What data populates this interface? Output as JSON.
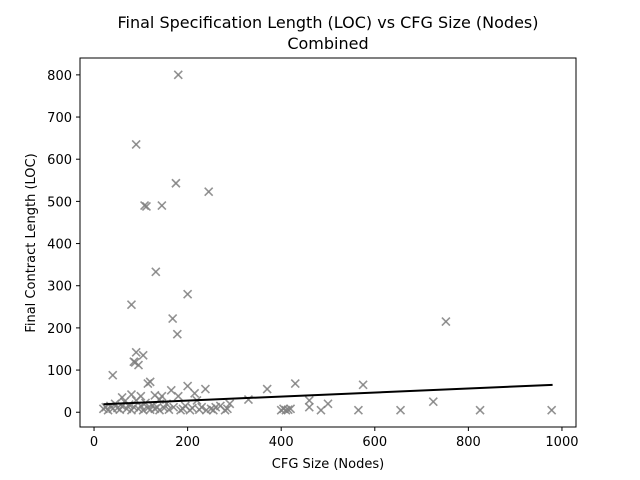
{
  "chart_data": {
    "type": "scatter",
    "title": "Final Specification Length (LOC) vs CFG Size (Nodes)",
    "subtitle": "Combined",
    "xlabel": "CFG Size (Nodes)",
    "ylabel": "Final Contract Length (LOC)",
    "xlim": [
      -30,
      1030
    ],
    "ylim": [
      -35,
      840
    ],
    "xticks": [
      0,
      200,
      400,
      600,
      800,
      1000
    ],
    "yticks": [
      0,
      100,
      200,
      300,
      400,
      500,
      600,
      700,
      800
    ],
    "grid": false,
    "marker": "x",
    "colors": {
      "points": "#808080",
      "trend": "#000000"
    },
    "points": [
      [
        180,
        800
      ],
      [
        90,
        635
      ],
      [
        175,
        543
      ],
      [
        245,
        523
      ],
      [
        108,
        490
      ],
      [
        112,
        488
      ],
      [
        145,
        490
      ],
      [
        132,
        333
      ],
      [
        200,
        280
      ],
      [
        80,
        255
      ],
      [
        168,
        222
      ],
      [
        178,
        185
      ],
      [
        752,
        215
      ],
      [
        90,
        142
      ],
      [
        105,
        135
      ],
      [
        85,
        120
      ],
      [
        95,
        112
      ],
      [
        88,
        118
      ],
      [
        40,
        88
      ],
      [
        120,
        72
      ],
      [
        115,
        68
      ],
      [
        430,
        68
      ],
      [
        575,
        65
      ],
      [
        200,
        62
      ],
      [
        165,
        52
      ],
      [
        238,
        55
      ],
      [
        370,
        55
      ],
      [
        215,
        45
      ],
      [
        80,
        42
      ],
      [
        130,
        40
      ],
      [
        100,
        38
      ],
      [
        145,
        38
      ],
      [
        180,
        38
      ],
      [
        60,
        35
      ],
      [
        330,
        30
      ],
      [
        220,
        28
      ],
      [
        460,
        28
      ],
      [
        500,
        20
      ],
      [
        725,
        25
      ],
      [
        290,
        20
      ],
      [
        140,
        30
      ],
      [
        20,
        8
      ],
      [
        25,
        12
      ],
      [
        30,
        5
      ],
      [
        35,
        15
      ],
      [
        40,
        8
      ],
      [
        45,
        20
      ],
      [
        50,
        10
      ],
      [
        55,
        6
      ],
      [
        60,
        14
      ],
      [
        65,
        25
      ],
      [
        70,
        8
      ],
      [
        75,
        18
      ],
      [
        80,
        5
      ],
      [
        85,
        12
      ],
      [
        90,
        28
      ],
      [
        95,
        8
      ],
      [
        100,
        15
      ],
      [
        105,
        5
      ],
      [
        110,
        22
      ],
      [
        115,
        10
      ],
      [
        120,
        6
      ],
      [
        125,
        16
      ],
      [
        130,
        8
      ],
      [
        135,
        12
      ],
      [
        140,
        5
      ],
      [
        150,
        10
      ],
      [
        155,
        20
      ],
      [
        160,
        6
      ],
      [
        170,
        12
      ],
      [
        185,
        5
      ],
      [
        190,
        8
      ],
      [
        195,
        15
      ],
      [
        205,
        5
      ],
      [
        210,
        10
      ],
      [
        225,
        6
      ],
      [
        230,
        12
      ],
      [
        240,
        5
      ],
      [
        250,
        8
      ],
      [
        255,
        5
      ],
      [
        260,
        12
      ],
      [
        270,
        15
      ],
      [
        280,
        5
      ],
      [
        285,
        8
      ],
      [
        400,
        5
      ],
      [
        405,
        8
      ],
      [
        410,
        5
      ],
      [
        415,
        6
      ],
      [
        420,
        8
      ],
      [
        460,
        12
      ],
      [
        485,
        5
      ],
      [
        565,
        5
      ],
      [
        655,
        5
      ],
      [
        825,
        5
      ],
      [
        978,
        5
      ]
    ],
    "trendline": {
      "x": [
        20,
        980
      ],
      "y": [
        19,
        65
      ]
    }
  }
}
